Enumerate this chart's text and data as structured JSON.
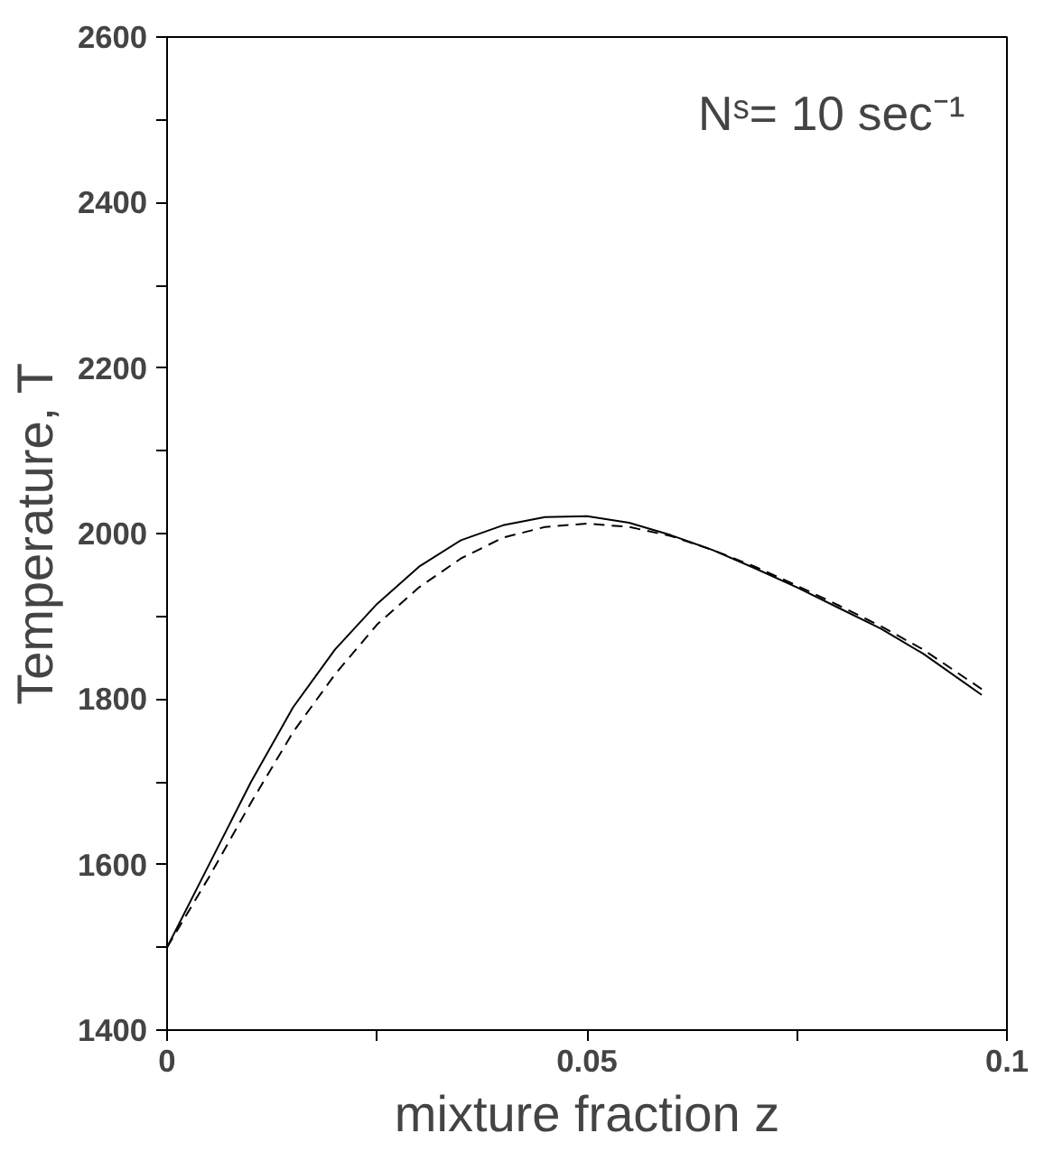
{
  "chart_data": {
    "type": "line",
    "xlabel": "mixture fraction z",
    "ylabel": "Temperature, T",
    "annotations": [
      "Nˢ= 10 sec⁻¹"
    ],
    "xlim": [
      0,
      0.1
    ],
    "ylim": [
      1400,
      2600
    ],
    "xticks": [
      0,
      {
        "value": 0.025,
        "label": null
      },
      0.05,
      {
        "value": 0.075,
        "label": null
      },
      0.1
    ],
    "yticks": [
      1400,
      {
        "value": 1500,
        "label": null
      },
      1600,
      {
        "value": 1700,
        "label": null
      },
      1800,
      {
        "value": 1900,
        "label": null
      },
      2000,
      {
        "value": 2100,
        "label": null
      },
      2200,
      {
        "value": 2300,
        "label": null
      },
      2400,
      {
        "value": 2500,
        "label": null
      },
      2600
    ],
    "x": [
      0,
      0.005,
      0.01,
      0.015,
      0.02,
      0.025,
      0.03,
      0.035,
      0.04,
      0.045,
      0.05,
      0.055,
      0.06,
      0.065,
      0.07,
      0.075,
      0.08,
      0.085,
      0.09,
      0.097
    ],
    "series": [
      {
        "color": "#000000",
        "line_style": "solid",
        "values": [
          1500,
          1600,
          1700,
          1790,
          1860,
          1915,
          1960,
          1992,
          2010,
          2020,
          2021,
          2013,
          1998,
          1980,
          1958,
          1935,
          1910,
          1885,
          1855,
          1805
        ]
      },
      {
        "color": "#000000",
        "line_style": "dashed",
        "values": [
          1500,
          1585,
          1675,
          1760,
          1830,
          1890,
          1935,
          1970,
          1995,
          2008,
          2012,
          2008,
          1997,
          1980,
          1960,
          1937,
          1913,
          1888,
          1860,
          1812
        ]
      }
    ]
  }
}
